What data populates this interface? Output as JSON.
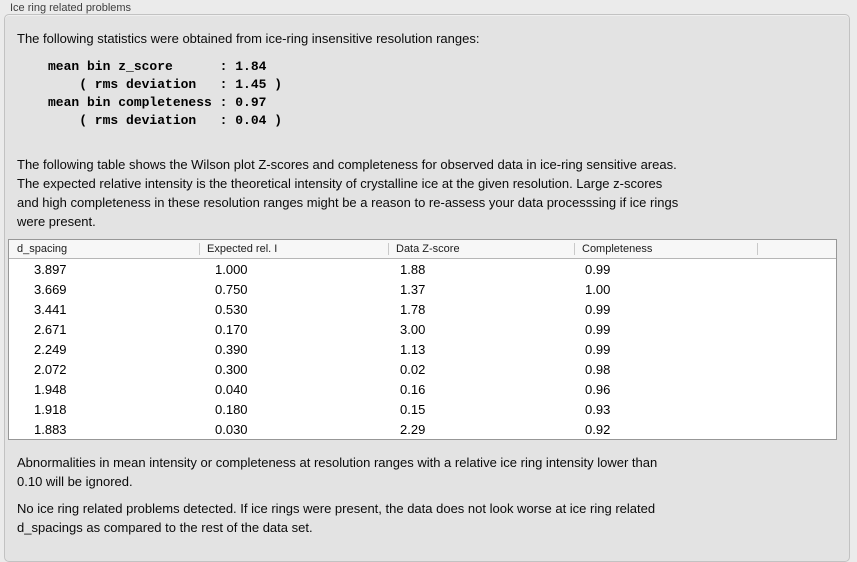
{
  "panel": {
    "title": "Ice ring related problems",
    "intro": "The following statistics were obtained from ice-ring insensitive resolution ranges:",
    "stats_block": "mean bin z_score      : 1.84\n    ( rms deviation   : 1.45 )\nmean bin completeness : 0.97\n    ( rms deviation   : 0.04 )",
    "stats": {
      "mean_bin_z_score": "1.84",
      "z_score_rms_deviation": "1.45",
      "mean_bin_completeness": "0.97",
      "completeness_rms_deviation": "0.04"
    },
    "description": "The following table shows the Wilson plot Z-scores and completeness for observed data in ice-ring sensitive areas.\nThe expected relative intensity is the theoretical intensity of crystalline ice at the given resolution. Large z-scores\nand high completeness in these resolution ranges might be a reason to re-assess your data processsing if ice rings\nwere present.",
    "ignore_note": "Abnormalities in mean intensity or completeness at resolution ranges with a relative ice ring intensity lower than\n0.10 will be ignored.",
    "conclusion": "No ice ring related problems detected. If ice rings were present, the data does not look worse at ice ring related\nd_spacings as compared to the rest of the data set."
  },
  "table": {
    "columns": [
      "d_spacing",
      "Expected rel. I",
      "Data Z-score",
      "Completeness"
    ],
    "rows": [
      [
        "3.897",
        "1.000",
        "1.88",
        "0.99"
      ],
      [
        "3.669",
        "0.750",
        "1.37",
        "1.00"
      ],
      [
        "3.441",
        "0.530",
        "1.78",
        "0.99"
      ],
      [
        "2.671",
        "0.170",
        "3.00",
        "0.99"
      ],
      [
        "2.249",
        "0.390",
        "1.13",
        "0.99"
      ],
      [
        "2.072",
        "0.300",
        "0.02",
        "0.98"
      ],
      [
        "1.948",
        "0.040",
        "0.16",
        "0.96"
      ],
      [
        "1.918",
        "0.180",
        "0.15",
        "0.93"
      ],
      [
        "1.883",
        "0.030",
        "2.29",
        "0.92"
      ]
    ]
  },
  "colors": {
    "page_background": "#ebebeb",
    "panel_background": "#e3e3e3",
    "panel_border": "#c2c2c2",
    "table_border": "#979797",
    "table_header_background": "#f7f7f7",
    "text": "#0a0a0a"
  }
}
